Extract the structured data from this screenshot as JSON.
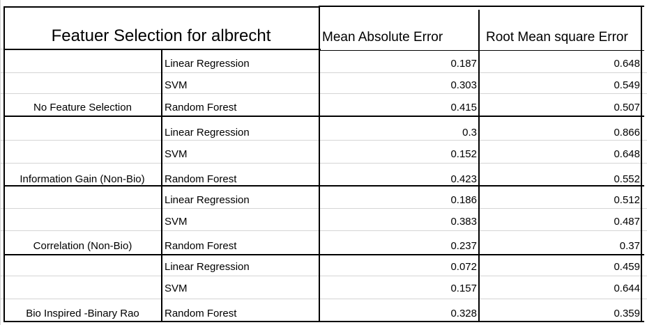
{
  "table": {
    "title": "Featuer Selection for albrecht",
    "columns": [
      "Mean Absolute Error",
      "Root Mean square Error"
    ],
    "groups": [
      {
        "name": "No Feature Selection",
        "rows": [
          {
            "model": "Linear Regression",
            "mae": "0.187",
            "rmse": "0.648"
          },
          {
            "model": "SVM",
            "mae": "0.303",
            "rmse": "0.549"
          },
          {
            "model": "Random Forest",
            "mae": "0.415",
            "rmse": "0.507"
          }
        ]
      },
      {
        "name": "Information Gain (Non-Bio)",
        "rows": [
          {
            "model": "Linear Regression",
            "mae": "0.3",
            "rmse": "0.866"
          },
          {
            "model": "SVM",
            "mae": "0.152",
            "rmse": "0.648"
          },
          {
            "model": "Random Forest",
            "mae": "0.423",
            "rmse": "0.552"
          }
        ]
      },
      {
        "name": "Correlation (Non-Bio)",
        "rows": [
          {
            "model": "Linear Regression",
            "mae": "0.186",
            "rmse": "0.512"
          },
          {
            "model": "SVM",
            "mae": "0.383",
            "rmse": "0.487"
          },
          {
            "model": "Random Forest",
            "mae": "0.237",
            "rmse": "0.37"
          }
        ]
      },
      {
        "name": "Bio Inspired -Binary Rao",
        "rows": [
          {
            "model": "Linear Regression",
            "mae": "0.072",
            "rmse": "0.459"
          },
          {
            "model": "SVM",
            "mae": "0.157",
            "rmse": "0.644"
          },
          {
            "model": "Random Forest",
            "mae": "0.328",
            "rmse": "0.359"
          }
        ]
      }
    ]
  }
}
